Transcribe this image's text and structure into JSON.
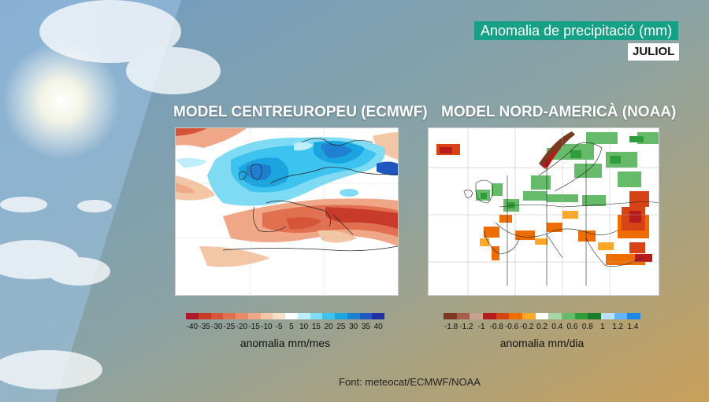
{
  "header": {
    "title": "Anomalia de precipitació (mm)",
    "month": "JULIOL"
  },
  "maps": {
    "left": {
      "title": "MODEL CENTREUROPEU (ECMWF)",
      "legend_labels": [
        "-40",
        "-35",
        "-30",
        "-25",
        "-20",
        "-15",
        "-10",
        "-5",
        "5",
        "10",
        "15",
        "20",
        "25",
        "30",
        "35",
        "40"
      ],
      "legend_colors": [
        "#b2182b",
        "#c83a2a",
        "#d6543a",
        "#e07050",
        "#e88a6a",
        "#efa787",
        "#f3c6a5",
        "#f6dfc7",
        "#ffffff",
        "#bdeefa",
        "#7fdbf4",
        "#3cc3ef",
        "#1aa5e0",
        "#1f7fd1",
        "#1f56c0",
        "#1f2fa5"
      ],
      "unit_label": "anomalia mm/mes"
    },
    "right": {
      "title": "MODEL NORD-AMERICÀ (NOAA)",
      "legend_labels": [
        "-1.8",
        "-1.2",
        "-1",
        "-0.8",
        "-0.6",
        "-0.2",
        "0.2",
        "0.4",
        "0.6",
        "0.8",
        "1",
        "1.2",
        "1.4"
      ],
      "legend_colors": [
        "#7a3a22",
        "#a5604a",
        "#c7a08f",
        "#b71c1c",
        "#d84315",
        "#ef6c00",
        "#ffa726",
        "#ffffff",
        "#a5d6a7",
        "#66bb6a",
        "#2e9d3a",
        "#1b7a2b",
        "#bbdefb",
        "#64b5f6",
        "#1e88e5"
      ],
      "unit_label": "anomalia mm/dia"
    }
  },
  "source": "Font: meteocat/ECMWF/NOAA",
  "colors": {
    "title_bg": "#16a085"
  }
}
